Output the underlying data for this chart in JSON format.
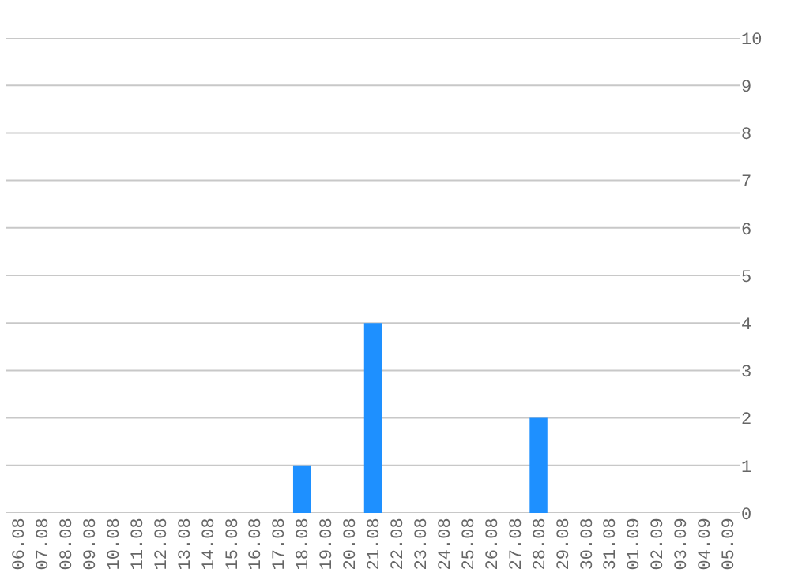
{
  "chart_data": {
    "type": "bar",
    "categories": [
      "06.08",
      "07.08",
      "08.08",
      "09.08",
      "10.08",
      "11.08",
      "12.08",
      "13.08",
      "14.08",
      "15.08",
      "16.08",
      "17.08",
      "18.08",
      "19.08",
      "20.08",
      "21.08",
      "22.08",
      "23.08",
      "24.08",
      "25.08",
      "26.08",
      "27.08",
      "28.08",
      "29.08",
      "30.08",
      "31.08",
      "01.09",
      "02.09",
      "03.09",
      "04.09",
      "05.09"
    ],
    "values": [
      0,
      0,
      0,
      0,
      0,
      0,
      0,
      0,
      0,
      0,
      0,
      0,
      1,
      0,
      0,
      4,
      0,
      0,
      0,
      0,
      0,
      0,
      2,
      0,
      0,
      0,
      0,
      0,
      0,
      0,
      0
    ],
    "color": "#1e90ff",
    "ylim": [
      0,
      10
    ],
    "yticks": [
      0,
      1,
      2,
      3,
      4,
      5,
      6,
      7,
      8,
      9,
      10
    ],
    "grid": "y"
  }
}
